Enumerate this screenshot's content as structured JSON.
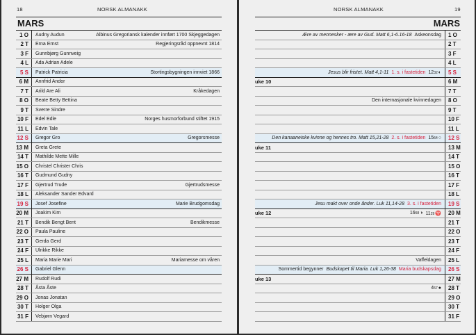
{
  "left_page": {
    "page_number": "18",
    "header": "NORSK  ALMANAKK",
    "month": "MARS",
    "rows": [
      {
        "day": "1 O",
        "names": "Audny Audun",
        "note": "Albinus   Gregoriansk kalender innført 1700   Skjeggedagen"
      },
      {
        "day": "2 T",
        "names": "Erna Ernst",
        "note": "Regjeringsråd oppnevnt 1814"
      },
      {
        "day": "3 F",
        "names": "Gunnbjørg Gunnveig",
        "note": ""
      },
      {
        "day": "4 L",
        "names": "Ada Adrian Adele",
        "note": ""
      },
      {
        "day": "5 S",
        "names": "Patrick Patricia",
        "note": "Stortingsbygningen innviet 1866",
        "sunday": true
      },
      {
        "day": "6 M",
        "names": "Annfrid Andor",
        "note": ""
      },
      {
        "day": "7 T",
        "names": "Arild Are Ali",
        "note": "Kråkedagen"
      },
      {
        "day": "8 O",
        "names": "Beate Betty Bettina",
        "note": ""
      },
      {
        "day": "9 T",
        "names": "Sverre Sindre",
        "note": ""
      },
      {
        "day": "10 F",
        "names": "Edel Edle",
        "note": "Norges husmorforbund stiftet 1915"
      },
      {
        "day": "11 L",
        "names": "Edvin Tale",
        "note": ""
      },
      {
        "day": "12 S",
        "names": "Gregor Gro",
        "note": "Gregorsmesse",
        "sunday": true
      },
      {
        "day": "13 M",
        "names": "Greta Grete",
        "note": ""
      },
      {
        "day": "14 T",
        "names": "Mathilde Mette Mille",
        "note": ""
      },
      {
        "day": "15 O",
        "names": "Christel Christer Chris",
        "note": ""
      },
      {
        "day": "16 T",
        "names": "Gudmund Gudny",
        "note": ""
      },
      {
        "day": "17 F",
        "names": "Gjertrud Trude",
        "note": "Gjertrudsmesse"
      },
      {
        "day": "18 L",
        "names": "Aleksander Sander Edvard",
        "note": ""
      },
      {
        "day": "19 S",
        "names": "Josef Josefine",
        "note": "Marie Brudgomsdag",
        "sunday": true
      },
      {
        "day": "20 M",
        "names": "Joakim Kim",
        "note": ""
      },
      {
        "day": "21 T",
        "names": "Bendik Bengt Bent",
        "note": "Bendikmesse"
      },
      {
        "day": "22 O",
        "names": "Paula Pauline",
        "note": ""
      },
      {
        "day": "23 T",
        "names": "Gerda Gerd",
        "note": ""
      },
      {
        "day": "24 F",
        "names": "Ulrikke Rikke",
        "note": ""
      },
      {
        "day": "25 L",
        "names": "Maria Marie Mari",
        "note": "Mariamesse om våren"
      },
      {
        "day": "26 S",
        "names": "Gabriel Glenn",
        "note": "",
        "sunday": true
      },
      {
        "day": "27 M",
        "names": "Rudolf Rudi",
        "note": ""
      },
      {
        "day": "28 T",
        "names": "Åsta Åste",
        "note": ""
      },
      {
        "day": "29 O",
        "names": "Jonas Jonatan",
        "note": ""
      },
      {
        "day": "30 T",
        "names": "Holger Olga",
        "note": ""
      },
      {
        "day": "31 F",
        "names": "Vebjørn Vegard",
        "note": ""
      }
    ]
  },
  "right_page": {
    "page_number": "19",
    "header": "NORSK  ALMANAKK",
    "month": "MARS",
    "rows": [
      {
        "day": "1 O",
        "segments": [
          {
            "t": "Ære av mennesker - ære av Gud. Matt 6,1-6.16-18",
            "s": "it"
          },
          {
            "t": "Askeonsdag",
            "s": ""
          }
        ]
      },
      {
        "day": "2 T"
      },
      {
        "day": "3 F"
      },
      {
        "day": "4 L"
      },
      {
        "day": "5 S",
        "sunday": true,
        "segments": [
          {
            "t": "Jesus blir fristet. Matt 4,1-11",
            "s": "it"
          },
          {
            "t": "1. s. i fastetiden",
            "s": "red"
          },
          {
            "h": "12",
            "m": "32",
            "icon": "◐",
            "icon_name": "last-quarter-moon-icon"
          }
        ]
      },
      {
        "day": "6 M",
        "week": "uke 10"
      },
      {
        "day": "7 T"
      },
      {
        "day": "8 O",
        "segments": [
          {
            "t": "Den internasjonale kvinnedagen",
            "s": ""
          }
        ]
      },
      {
        "day": "9 T"
      },
      {
        "day": "10 F"
      },
      {
        "day": "11 L"
      },
      {
        "day": "12 S",
        "sunday": true,
        "segments": [
          {
            "t": "Den kanaaneiske kvinne og hennes tro. Matt 15,21-28",
            "s": "it"
          },
          {
            "t": "2. s. i fastetiden",
            "s": "red"
          },
          {
            "h": "15",
            "m": "54",
            "icon": "○",
            "icon_name": "full-moon-icon"
          }
        ]
      },
      {
        "day": "13 M",
        "week": "uke 11"
      },
      {
        "day": "14 T"
      },
      {
        "day": "15 O"
      },
      {
        "day": "16 T"
      },
      {
        "day": "17 F"
      },
      {
        "day": "18 L"
      },
      {
        "day": "19 S",
        "sunday": true,
        "segments": [
          {
            "t": "Jesu makt over onde ånder. Luk 11,14-28",
            "s": "it"
          },
          {
            "t": "3. s. i fastetiden",
            "s": "red"
          }
        ]
      },
      {
        "day": "20 M",
        "week": "uke 12",
        "segments": [
          {
            "h": "16",
            "m": "58",
            "icon": "◑",
            "icon_name": "first-quarter-moon-icon"
          },
          {
            "h": "11",
            "m": "29",
            "icon": "♈",
            "icon_name": "aries-equinox-icon"
          }
        ]
      },
      {
        "day": "21 T"
      },
      {
        "day": "22 O"
      },
      {
        "day": "23 T"
      },
      {
        "day": "24 F"
      },
      {
        "day": "25 L",
        "segments": [
          {
            "t": "Vaffeldagen",
            "s": ""
          }
        ]
      },
      {
        "day": "26 S",
        "sunday": true,
        "segments": [
          {
            "t": "Sommertid begynner",
            "s": ""
          },
          {
            "t": "Budskapet til Maria. Luk 1,26-38",
            "s": "it"
          },
          {
            "t": "Maria budskapsdag",
            "s": "red"
          }
        ]
      },
      {
        "day": "27 M",
        "week": "uke 13"
      },
      {
        "day": "28 T",
        "segments": [
          {
            "h": "4",
            "m": "57",
            "icon": "●",
            "icon_name": "new-moon-icon"
          }
        ]
      },
      {
        "day": "29 O"
      },
      {
        "day": "30 T"
      },
      {
        "day": "31 F"
      }
    ]
  },
  "colors": {
    "sunday_red": "#d6203b",
    "sunday_bg": "#e2edf5",
    "page_bg": "#efefef"
  }
}
